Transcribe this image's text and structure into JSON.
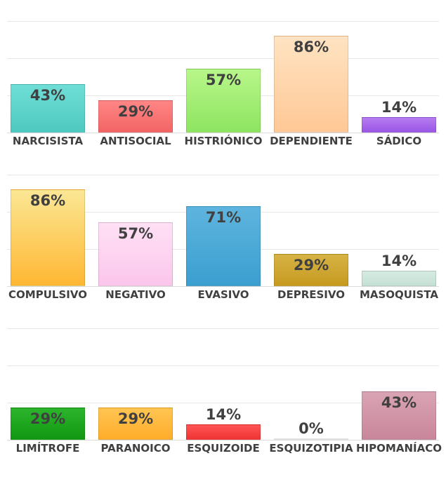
{
  "chart_data": [
    {
      "type": "bar",
      "categories": [
        "NARCISISTA",
        "ANTISOCIAL",
        "HISTRIÓNICO",
        "DEPENDIENTE",
        "SÁDICO"
      ],
      "values": [
        43,
        29,
        57,
        86,
        14
      ],
      "value_labels": [
        "43%",
        "29%",
        "57%",
        "86%",
        "14%"
      ],
      "colors": [
        [
          "#6fded6",
          "#4ec9c0"
        ],
        [
          "#ff8686",
          "#f36464"
        ],
        [
          "#b8f78a",
          "#8ee461"
        ],
        [
          "#ffe3c2",
          "#ffc896"
        ],
        [
          "#b77cf0",
          "#9a56e6"
        ]
      ],
      "ylim": [
        0,
        100
      ],
      "grid": true
    },
    {
      "type": "bar",
      "categories": [
        "COMPULSIVO",
        "NEGATIVO",
        "EVASIVO",
        "DEPRESIVO",
        "MASOQUISTA"
      ],
      "values": [
        86,
        57,
        71,
        29,
        14
      ],
      "value_labels": [
        "86%",
        "57%",
        "71%",
        "29%",
        "14%"
      ],
      "colors": [
        [
          "#fbe795",
          "#ffb733"
        ],
        [
          "#ffe0f5",
          "#fbc6ec"
        ],
        [
          "#5eb4de",
          "#3b9fd0"
        ],
        [
          "#d6b345",
          "#c69a1f"
        ],
        [
          "#d6ebe2",
          "#c4e0d4"
        ]
      ],
      "ylim": [
        0,
        100
      ],
      "grid": true
    },
    {
      "type": "bar",
      "categories": [
        "LIMÍTROFE",
        "PARANOICO",
        "ESQUIZOIDE",
        "ESQUIZOTIPIA",
        "HIPOMANÍACO"
      ],
      "values": [
        29,
        29,
        14,
        0,
        43
      ],
      "value_labels": [
        "29%",
        "29%",
        "14%",
        "0%",
        "43%"
      ],
      "colors": [
        [
          "#2cb52c",
          "#129712"
        ],
        [
          "#ffc552",
          "#ffad2a"
        ],
        [
          "#ff5454",
          "#ef3434"
        ],
        [
          "#c79bf7",
          "#a874ef"
        ],
        [
          "#d9a4b3",
          "#c9869a"
        ]
      ],
      "ylim": [
        0,
        100
      ],
      "grid": true
    }
  ]
}
